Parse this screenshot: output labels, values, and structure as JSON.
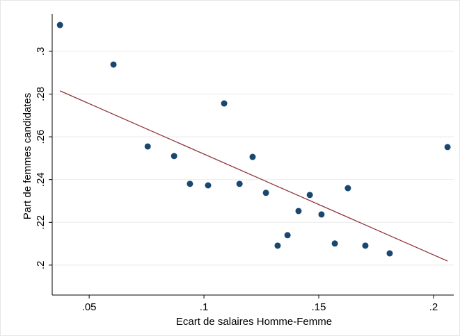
{
  "chart_data": {
    "type": "scatter",
    "xlabel": "Ecart de salaires Homme-Femme",
    "ylabel": "Part de femmes candidates",
    "x": [
      0.0373,
      0.0606,
      0.0755,
      0.087,
      0.0939,
      0.1018,
      0.1088,
      0.1155,
      0.1212,
      0.127,
      0.1321,
      0.1364,
      0.1412,
      0.1461,
      0.1512,
      0.157,
      0.1627,
      0.1703,
      0.1809,
      0.2061
    ],
    "values": [
      0.3123,
      0.2938,
      0.2555,
      0.251,
      0.238,
      0.2373,
      0.2756,
      0.238,
      0.2506,
      0.2338,
      0.2091,
      0.214,
      0.2253,
      0.2328,
      0.2237,
      0.2101,
      0.236,
      0.2091,
      0.2055,
      0.2552
    ],
    "color": "#1a476f",
    "fit": {
      "x": [
        0.0373,
        0.2061
      ],
      "values": [
        0.2815,
        0.2019
      ],
      "color": "#90353b"
    },
    "xlim": [
      0.0339,
      0.2088
    ],
    "ylim": [
      0.186,
      0.3175
    ],
    "xticks": [
      {
        "value": 0.05,
        "label": ".05"
      },
      {
        "value": 0.1,
        "label": ".1"
      },
      {
        "value": 0.15,
        "label": ".15"
      },
      {
        "value": 0.2,
        "label": ".2"
      }
    ],
    "yticks": [
      {
        "value": 0.2,
        "label": ".2"
      },
      {
        "value": 0.22,
        "label": ".22"
      },
      {
        "value": 0.24,
        "label": ".24"
      },
      {
        "value": 0.26,
        "label": ".26"
      },
      {
        "value": 0.28,
        "label": ".28"
      },
      {
        "value": 0.3,
        "label": ".3"
      }
    ],
    "grid": true
  }
}
